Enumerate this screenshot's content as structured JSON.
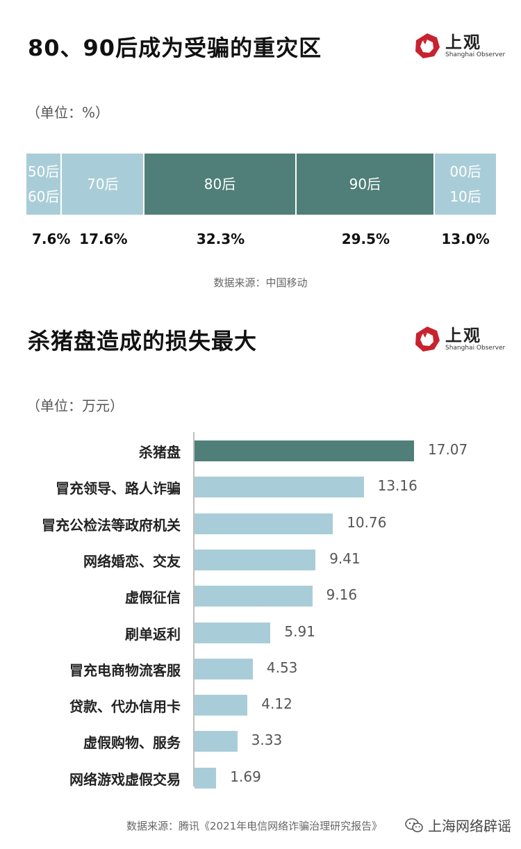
{
  "logo": {
    "name_cn": "上观",
    "name_en": "Shanghai Observer"
  },
  "chart_data": [
    {
      "type": "bar",
      "orientation": "stacked-horizontal",
      "title": "80、90后成为受骗的重灾区",
      "unit": "（单位：%）",
      "categories": [
        "50后\n60后",
        "70后",
        "80后",
        "90后",
        "00后\n10后"
      ],
      "values": [
        7.6,
        17.6,
        32.3,
        29.5,
        13.0
      ],
      "value_labels": [
        "7.6%",
        "17.6%",
        "32.3%",
        "29.5%",
        "13.0%"
      ],
      "colors": [
        "#a9cdd8",
        "#a9cdd8",
        "#4f7f78",
        "#4f7f78",
        "#a9cdd8"
      ],
      "source": "数据来源：中国移动"
    },
    {
      "type": "bar",
      "orientation": "horizontal",
      "title": "杀猪盘造成的损失最大",
      "unit": "（单位：万元）",
      "categories": [
        "杀猪盘",
        "冒充领导、路人诈骗",
        "冒充公检法等政府机关",
        "网络婚恋、交友",
        "虚假征信",
        "刷单返利",
        "冒充电商物流客服",
        "贷款、代办信用卡",
        "虚假购物、服务",
        "网络游戏虚假交易"
      ],
      "values": [
        17.07,
        13.16,
        10.76,
        9.41,
        9.16,
        5.91,
        4.53,
        4.12,
        3.33,
        1.69
      ],
      "value_labels": [
        "17.07",
        "13.16",
        "10.76",
        "9.41",
        "9.16",
        "5.91",
        "4.53",
        "4.12",
        "3.33",
        "1.69"
      ],
      "highlight_color": "#4f7f78",
      "bar_color": "#a9cdd8",
      "source": "数据来源：腾讯《2021年电信网络诈骗治理研究报告》"
    }
  ],
  "watermark": "上海网络辟谣"
}
